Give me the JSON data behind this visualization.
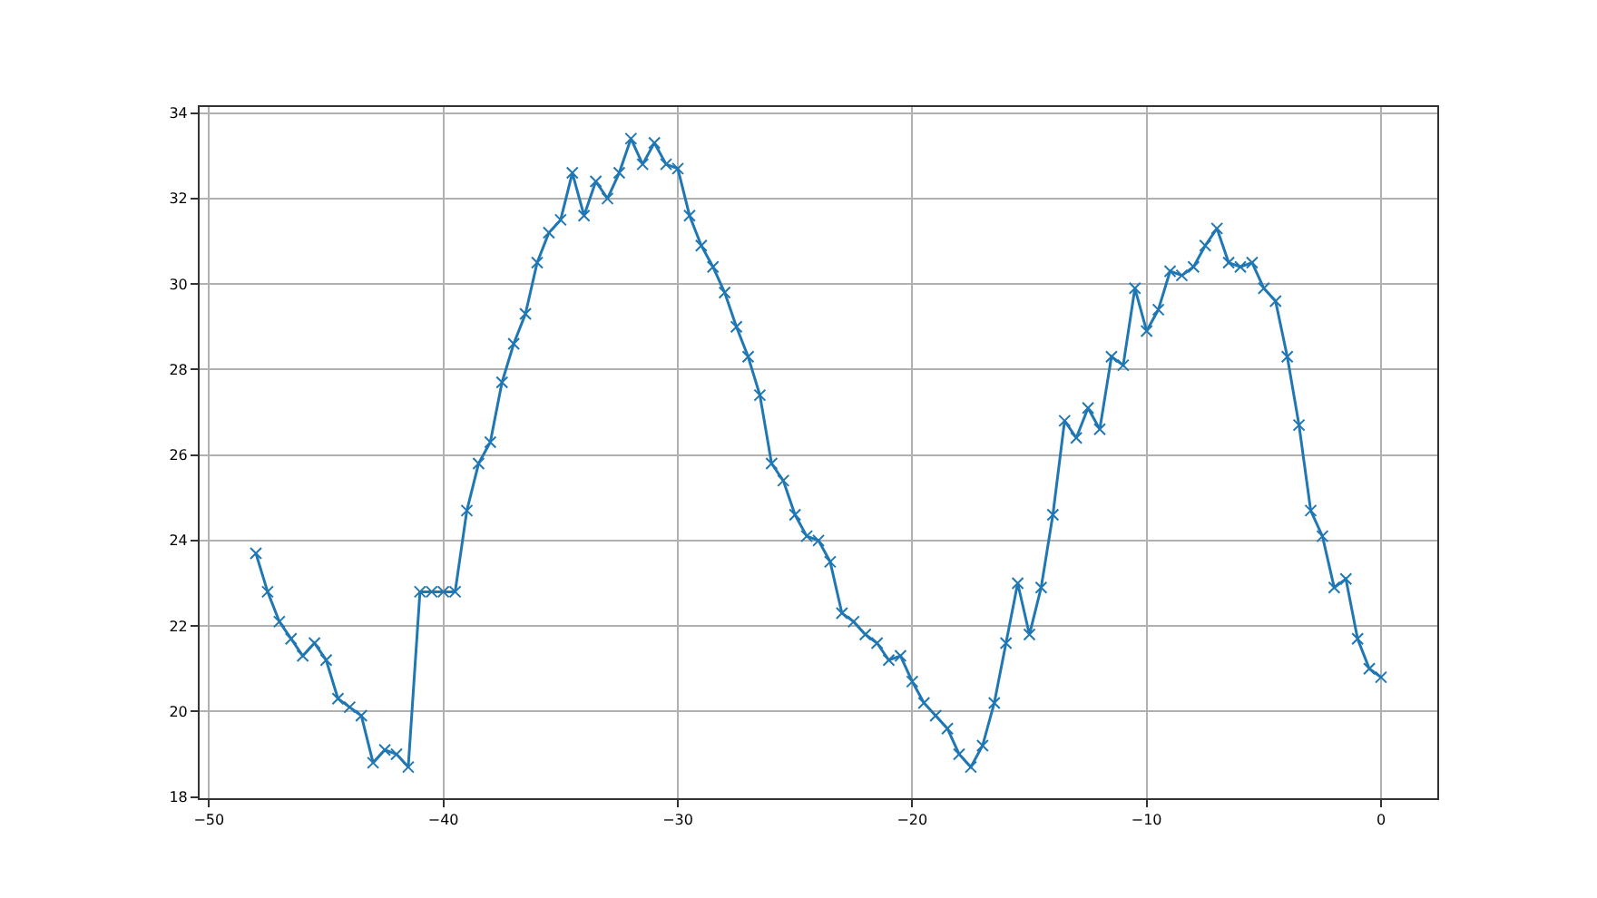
{
  "chart_data": {
    "type": "line",
    "marker": "cross",
    "line_style": "solid",
    "grid": true,
    "xlim": [
      -50.4,
      2.4
    ],
    "xticks": [
      -50,
      -40,
      -30,
      -20,
      -10,
      0
    ],
    "ylim": [
      17.97,
      34.14
    ],
    "yticks": [
      18,
      20,
      22,
      24,
      26,
      28,
      30,
      32,
      34
    ],
    "x": [
      -48,
      -47.5,
      -47,
      -46.5,
      -46,
      -45.5,
      -45,
      -44.5,
      -44,
      -43.5,
      -43,
      -42.5,
      -42,
      -41.5,
      -41,
      -40.5,
      -40,
      -39.5,
      -39,
      -38.5,
      -38,
      -37.5,
      -37,
      -36.5,
      -36,
      -35.5,
      -35,
      -34.5,
      -34,
      -33.5,
      -33,
      -32.5,
      -32,
      -31.5,
      -31,
      -30.5,
      -30,
      -29.5,
      -29,
      -28.5,
      -28,
      -27.5,
      -27,
      -26.5,
      -26,
      -25.5,
      -25,
      -24.5,
      -24,
      -23.5,
      -23,
      -22.5,
      -22,
      -21.5,
      -21,
      -20.5,
      -20,
      -19.5,
      -19,
      -18.5,
      -18,
      -17.5,
      -17,
      -16.5,
      -16,
      -15.5,
      -15,
      -14.5,
      -14,
      -13.5,
      -13,
      -12.5,
      -12,
      -11.5,
      -11,
      -10.5,
      -10,
      -9.5,
      -9,
      -8.5,
      -8,
      -7.5,
      -7,
      -6.5,
      -6,
      -5.5,
      -5,
      -4.5,
      -4,
      -3.5,
      -3,
      -2.5,
      -2,
      -1.5,
      -1,
      -0.5,
      0
    ],
    "series": [
      {
        "color": "#1f77b4",
        "values": [
          23.7,
          22.8,
          22.1,
          21.7,
          21.3,
          21.6,
          21.2,
          20.3,
          20.1,
          19.9,
          18.8,
          19.1,
          19.0,
          18.7,
          22.8,
          22.8,
          22.8,
          22.8,
          24.7,
          25.8,
          26.3,
          27.7,
          28.6,
          29.3,
          30.5,
          31.2,
          31.5,
          32.6,
          31.6,
          32.4,
          32.0,
          32.6,
          33.4,
          32.8,
          33.3,
          32.8,
          32.7,
          31.6,
          30.9,
          30.4,
          29.8,
          29.0,
          28.3,
          27.4,
          25.8,
          25.4,
          24.6,
          24.1,
          24.0,
          23.5,
          22.3,
          22.1,
          21.8,
          21.6,
          21.2,
          21.3,
          20.7,
          20.2,
          19.9,
          19.6,
          19.0,
          18.7,
          19.2,
          20.2,
          21.6,
          23.0,
          21.8,
          22.9,
          24.6,
          26.8,
          26.4,
          27.1,
          26.6,
          28.3,
          28.1,
          29.9,
          28.9,
          29.4,
          30.3,
          30.2,
          30.4,
          30.9,
          31.3,
          30.5,
          30.4,
          30.5,
          29.9,
          29.6,
          28.3,
          26.7,
          24.7,
          24.1,
          22.9,
          23.1,
          21.7,
          21.0,
          20.8
        ]
      }
    ]
  }
}
